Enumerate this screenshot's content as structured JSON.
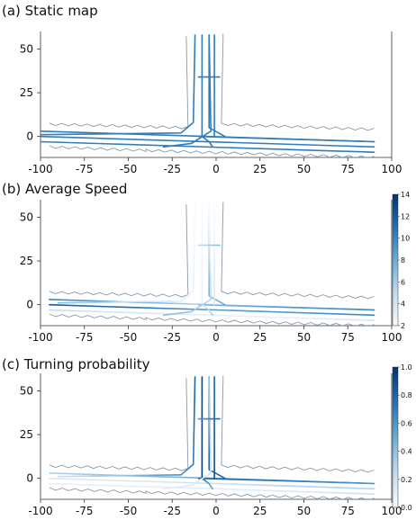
{
  "chart_data": [
    {
      "type": "line",
      "title": "(a) Static map",
      "xlim": [
        -100,
        100
      ],
      "ylim": [
        -12,
        60
      ],
      "xticks": [
        -100,
        -75,
        -50,
        -25,
        0,
        25,
        50,
        75,
        100
      ],
      "yticks": [
        0,
        25,
        50
      ],
      "colorbar": null,
      "series": [
        {
          "x": [
            -100,
            90
          ],
          "y": [
            3,
            -3
          ],
          "v": 0.7
        },
        {
          "x": [
            -100,
            90
          ],
          "y": [
            0,
            -6
          ],
          "v": 0.7
        },
        {
          "x": [
            -100,
            90
          ],
          "y": [
            -3,
            -9
          ],
          "v": 0.7
        },
        {
          "x": [
            -10,
            90
          ],
          "y": [
            0,
            -3
          ],
          "v": 0.7
        },
        {
          "x": [
            -100,
            -20,
            -13,
            -12
          ],
          "y": [
            1,
            2,
            8,
            58
          ],
          "v": 0.7
        },
        {
          "x": [
            -8,
            -8
          ],
          "y": [
            58,
            0
          ],
          "v": 0.7
        },
        {
          "x": [
            -8,
            -4,
            -2
          ],
          "y": [
            0,
            -3,
            -6
          ],
          "v": 0.7
        },
        {
          "x": [
            -4,
            -4,
            5
          ],
          "y": [
            58,
            5,
            0
          ],
          "v": 0.7
        },
        {
          "x": [
            -4,
            -3,
            -14,
            -30
          ],
          "y": [
            58,
            3,
            -4,
            -6
          ],
          "v": 0.7
        },
        {
          "x": [
            -1,
            -1
          ],
          "y": [
            58,
            0
          ],
          "v": 0.7
        },
        {
          "x": [
            -10,
            2
          ],
          "y": [
            34,
            34
          ],
          "v": 0.7
        }
      ]
    },
    {
      "type": "line",
      "title": "(b) Average Speed",
      "xlim": [
        -100,
        100
      ],
      "ylim": [
        -12,
        60
      ],
      "xticks": [
        -100,
        -75,
        -50,
        -25,
        0,
        25,
        50,
        75,
        100
      ],
      "yticks": [
        0,
        25,
        50
      ],
      "colorbar": {
        "min": 2,
        "max": 14,
        "ticks": [
          2,
          4,
          6,
          8,
          10,
          12,
          14
        ]
      },
      "series": [
        {
          "x": [
            -95,
            -50,
            0,
            45,
            90
          ],
          "y": [
            3,
            1.5,
            0,
            -1.5,
            -3
          ],
          "v": [
            10,
            8,
            5,
            5,
            7
          ]
        },
        {
          "x": [
            -95,
            -50,
            0,
            45,
            90
          ],
          "y": [
            0,
            -1.5,
            -3,
            -4.5,
            -6
          ],
          "v": [
            12,
            11,
            9,
            9,
            10
          ]
        },
        {
          "x": [
            -95,
            -50,
            0,
            45,
            90
          ],
          "y": [
            -3,
            -4.5,
            -6,
            -7.5,
            -9
          ],
          "v": [
            5,
            4,
            3,
            3,
            4
          ]
        },
        {
          "x": [
            -10,
            40,
            90
          ],
          "y": [
            0,
            -1.5,
            -3
          ],
          "v": [
            7,
            9,
            10
          ]
        },
        {
          "x": [
            -90,
            -20,
            -13,
            -12
          ],
          "y": [
            1,
            2,
            8,
            58
          ],
          "v": [
            7,
            5,
            3,
            2
          ]
        },
        {
          "x": [
            -8,
            -8
          ],
          "y": [
            58,
            0
          ],
          "v": [
            2,
            3
          ]
        },
        {
          "x": [
            -8,
            -4,
            -2
          ],
          "y": [
            0,
            -3,
            -6
          ],
          "v": [
            3,
            5,
            6
          ]
        },
        {
          "x": [
            -4,
            -4,
            5
          ],
          "y": [
            58,
            5,
            0
          ],
          "v": [
            3,
            6,
            8
          ]
        },
        {
          "x": [
            -4,
            -3,
            -14,
            -30
          ],
          "y": [
            58,
            3,
            -4,
            -6
          ],
          "v": [
            2,
            3,
            5,
            7
          ]
        },
        {
          "x": [
            -1,
            -1
          ],
          "y": [
            58,
            0
          ],
          "v": [
            2,
            4
          ]
        },
        {
          "x": [
            -10,
            2
          ],
          "y": [
            34,
            34
          ],
          "v": [
            5,
            7
          ]
        }
      ]
    },
    {
      "type": "line",
      "title": "(c) Turning probability",
      "xlim": [
        -100,
        100
      ],
      "ylim": [
        -12,
        60
      ],
      "xticks": [
        -100,
        -75,
        -50,
        -25,
        0,
        25,
        50,
        75,
        100
      ],
      "yticks": [
        0,
        25,
        50
      ],
      "colorbar": {
        "min": 0,
        "max": 1,
        "ticks": [
          0.0,
          0.2,
          0.4,
          0.6,
          0.8,
          1.0
        ]
      },
      "series": [
        {
          "x": [
            -95,
            -50,
            0,
            45,
            90
          ],
          "y": [
            3,
            1.5,
            0,
            -1.5,
            -3
          ],
          "v": [
            0.3,
            0.4,
            0.5,
            0.6,
            0.6
          ]
        },
        {
          "x": [
            -95,
            -50,
            0,
            45,
            90
          ],
          "y": [
            0,
            -1.5,
            -3,
            -4.5,
            -6
          ],
          "v": [
            0.15,
            0.15,
            0.2,
            0.3,
            0.3
          ]
        },
        {
          "x": [
            -95,
            -50,
            0,
            45,
            90
          ],
          "y": [
            -3,
            -4.5,
            -6,
            -7.5,
            -9
          ],
          "v": [
            0.1,
            0.1,
            0.1,
            0.15,
            0.2
          ]
        },
        {
          "x": [
            -10,
            40,
            90
          ],
          "y": [
            0,
            -1.5,
            -3
          ],
          "v": [
            0.8,
            0.7,
            0.6
          ]
        },
        {
          "x": [
            -90,
            -20,
            -13,
            -12
          ],
          "y": [
            1,
            2,
            8,
            58
          ],
          "v": [
            0.2,
            0.4,
            0.7,
            0.8
          ]
        },
        {
          "x": [
            -8,
            -8
          ],
          "y": [
            58,
            0
          ],
          "v": [
            0.9,
            0.95
          ]
        },
        {
          "x": [
            -8,
            -4,
            -2
          ],
          "y": [
            0,
            -3,
            -6
          ],
          "v": [
            0.8,
            0.6,
            0.5
          ]
        },
        {
          "x": [
            -4,
            -4,
            5
          ],
          "y": [
            58,
            5,
            0
          ],
          "v": [
            0.6,
            0.7,
            0.8
          ]
        },
        {
          "x": [
            -4,
            -3,
            -14,
            -30
          ],
          "y": [
            58,
            3,
            -4,
            -6
          ],
          "v": [
            0.4,
            0.3,
            0.2,
            0.1
          ]
        },
        {
          "x": [
            -1,
            -1
          ],
          "y": [
            58,
            0
          ],
          "v": [
            0.8,
            0.9
          ]
        },
        {
          "x": [
            -10,
            2
          ],
          "y": [
            34,
            34
          ],
          "v": [
            0.6,
            0.8
          ]
        }
      ]
    }
  ]
}
